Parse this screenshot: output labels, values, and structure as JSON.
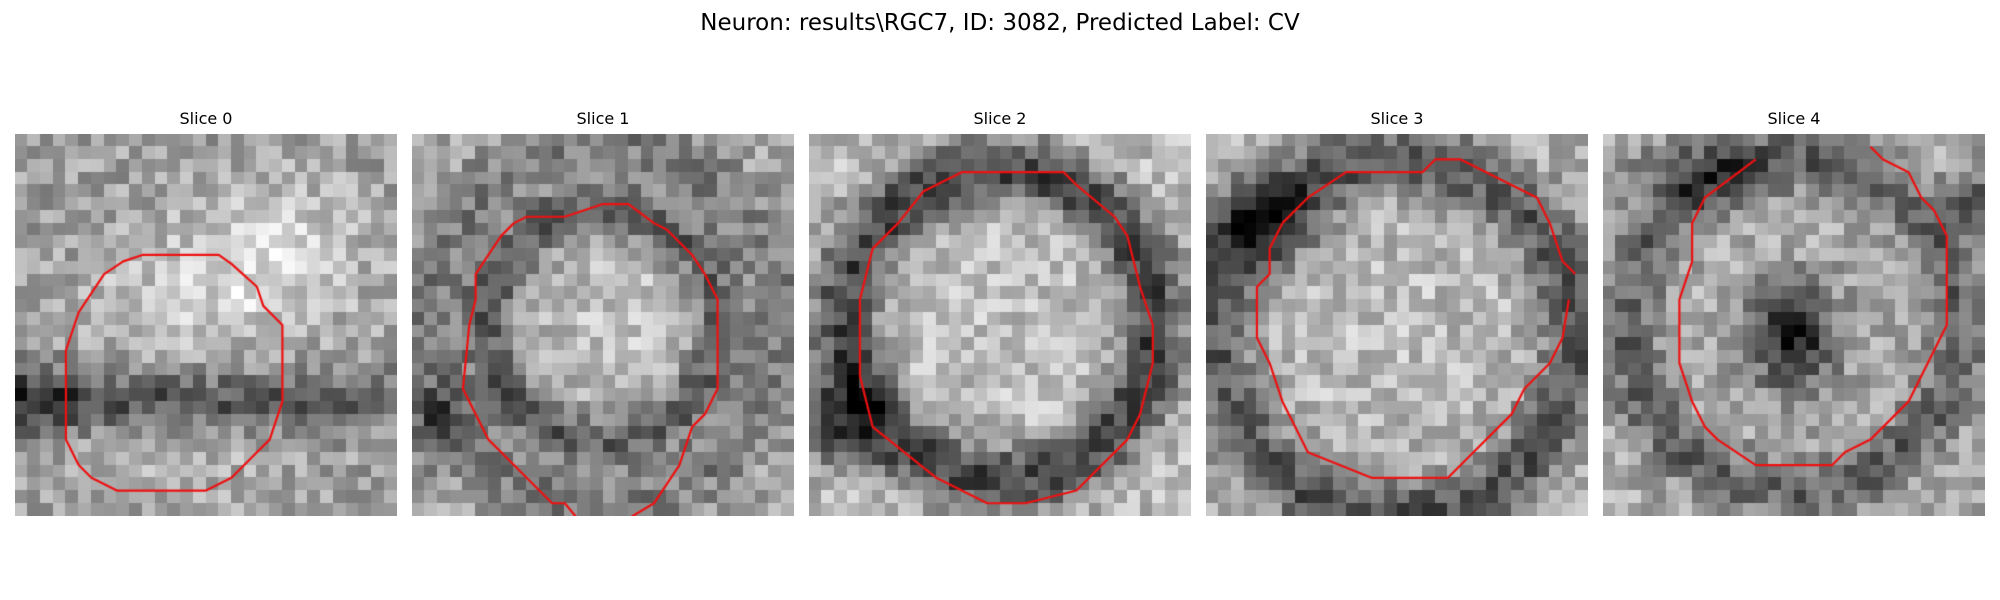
{
  "figure": {
    "title": "Neuron: results\\RGC7, ID: 3082, Predicted Label: CV",
    "panels": [
      {
        "title": "Slice 0",
        "pattern": "blob-two-lobes"
      },
      {
        "title": "Slice 1",
        "pattern": "ring-textured"
      },
      {
        "title": "Slice 2",
        "pattern": "ring-bright-core"
      },
      {
        "title": "Slice 3",
        "pattern": "ring-dark-border"
      },
      {
        "title": "Slice 4",
        "pattern": "ring-dark-nucleus"
      }
    ],
    "contour_color": "#ee1111",
    "colormap": "gray"
  }
}
